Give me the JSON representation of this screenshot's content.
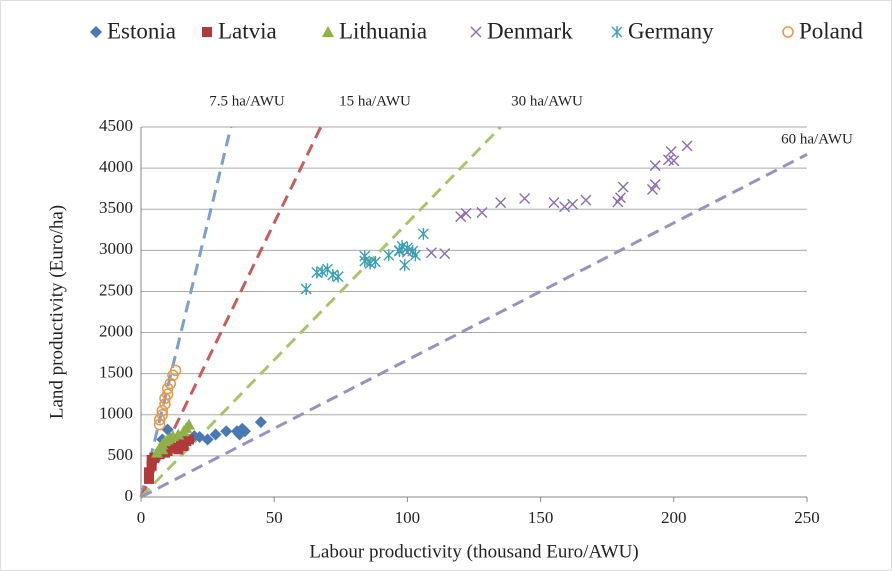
{
  "chart_data": {
    "type": "scatter",
    "xlabel": "Labour productivity (thousand Euro/AWU)",
    "ylabel": "Land productivity (Euro/ha)",
    "xlim": [
      0,
      250
    ],
    "xticks": [
      0,
      50,
      100,
      150,
      200,
      250
    ],
    "ylim": [
      0,
      4500
    ],
    "yticks": [
      0,
      500,
      1000,
      1500,
      2000,
      2500,
      3000,
      3500,
      4000,
      4500
    ],
    "grid": true,
    "legend": "top",
    "series": [
      {
        "name": "Estonia",
        "color": "#4a78b4",
        "marker": "diamond",
        "x": [
          5,
          6,
          8,
          10,
          12,
          15,
          20,
          22,
          25,
          28,
          32,
          36,
          37,
          38,
          39,
          45
        ],
        "values": [
          450,
          500,
          700,
          820,
          720,
          730,
          740,
          730,
          700,
          760,
          800,
          800,
          760,
          830,
          800,
          910
        ]
      },
      {
        "name": "Latvia",
        "color": "#b03a3a",
        "marker": "square",
        "x": [
          3,
          3,
          4,
          4,
          5,
          7,
          9,
          10,
          12,
          14,
          15,
          16,
          17,
          18
        ],
        "values": [
          220,
          300,
          380,
          450,
          480,
          520,
          540,
          560,
          600,
          580,
          650,
          620,
          680,
          700
        ]
      },
      {
        "name": "Lithuania",
        "color": "#8fb04a",
        "marker": "triangle",
        "x": [
          6,
          7,
          8,
          8,
          9,
          10,
          11,
          12,
          14,
          16,
          17,
          18
        ],
        "values": [
          540,
          600,
          580,
          640,
          680,
          700,
          720,
          740,
          760,
          800,
          840,
          880
        ]
      },
      {
        "name": "Denmark",
        "color": "#8a6bb4",
        "marker": "x",
        "x": [
          100,
          109,
          114,
          120,
          122,
          128,
          135,
          144,
          155,
          159,
          162,
          167,
          179,
          180,
          181,
          192,
          193,
          193,
          198,
          199,
          200,
          205
        ],
        "values": [
          2980,
          2970,
          2960,
          3410,
          3450,
          3460,
          3580,
          3630,
          3580,
          3530,
          3560,
          3610,
          3590,
          3640,
          3770,
          3740,
          3800,
          4030,
          4100,
          4200,
          4090,
          4270
        ]
      },
      {
        "name": "Germany",
        "color": "#3aa0b5",
        "marker": "asterisk",
        "x": [
          62,
          66,
          68,
          70,
          72,
          74,
          84,
          84,
          86,
          88,
          93,
          97,
          97,
          98,
          99,
          100,
          102,
          103,
          106
        ],
        "values": [
          2530,
          2730,
          2740,
          2770,
          2700,
          2680,
          2870,
          2930,
          2840,
          2860,
          2940,
          3000,
          2990,
          3050,
          2820,
          3030,
          2990,
          2940,
          3200
        ]
      },
      {
        "name": "Poland",
        "color": "#e8964a",
        "marker": "circle",
        "x": [
          7,
          7,
          8,
          8,
          9,
          9,
          10,
          10,
          11,
          12,
          13
        ],
        "values": [
          880,
          940,
          1000,
          1050,
          1130,
          1200,
          1250,
          1320,
          1380,
          1480,
          1540
        ]
      }
    ],
    "reference_lines": [
      {
        "label": "7.5 ha/AWU",
        "color": "#7c9fcf",
        "x": [
          0,
          33.75
        ],
        "values": [
          0,
          4500
        ]
      },
      {
        "label": "15 ha/AWU",
        "color": "#c95c5a",
        "x": [
          0,
          67.5
        ],
        "values": [
          0,
          4500
        ]
      },
      {
        "label": "30 ha/AWU",
        "color": "#a8c56c",
        "x": [
          0,
          135
        ],
        "values": [
          0,
          4500
        ]
      },
      {
        "label": "60 ha/AWU",
        "color": "#9a90c2",
        "x": [
          0,
          250
        ],
        "values": [
          0,
          4167
        ]
      }
    ]
  }
}
